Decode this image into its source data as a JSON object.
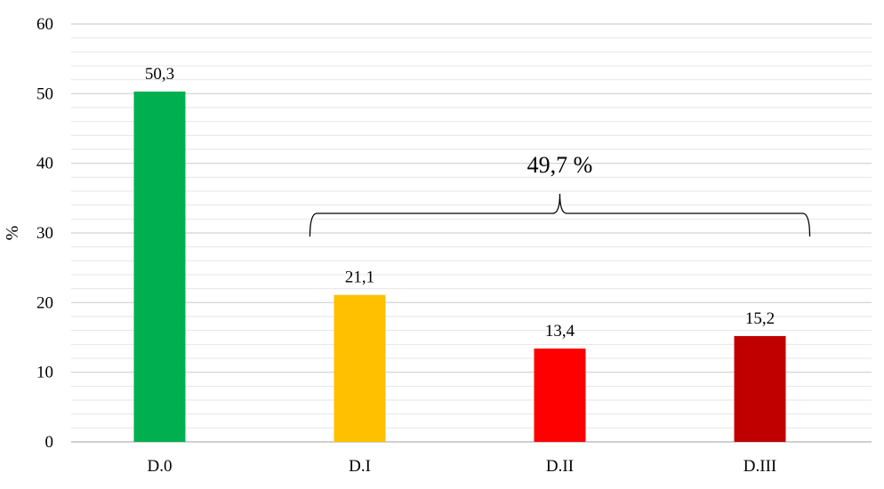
{
  "chart_data": {
    "type": "bar",
    "title": "",
    "xlabel": "",
    "ylabel": "%",
    "ylim": [
      0,
      60
    ],
    "y_ticks": [
      0,
      10,
      20,
      30,
      40,
      50,
      60
    ],
    "y_tick_labels": [
      "0",
      "10",
      "20",
      "30",
      "40",
      "50",
      "60"
    ],
    "minor_gridlines_step": 2,
    "grid": true,
    "legend": "none",
    "categories": [
      "D.0",
      "D.I",
      "D.II",
      "D.III"
    ],
    "values": [
      50.3,
      21.1,
      13.4,
      15.2
    ],
    "value_labels": [
      "50,3",
      "21,1",
      "13,4",
      "15,2"
    ],
    "colors": [
      "#00b050",
      "#ffc000",
      "#ff0000",
      "#c00000"
    ],
    "annotation": {
      "type": "brace",
      "text": "49,7 %",
      "from_category": "D.I",
      "to_category": "D.III",
      "y_value": 30
    }
  }
}
